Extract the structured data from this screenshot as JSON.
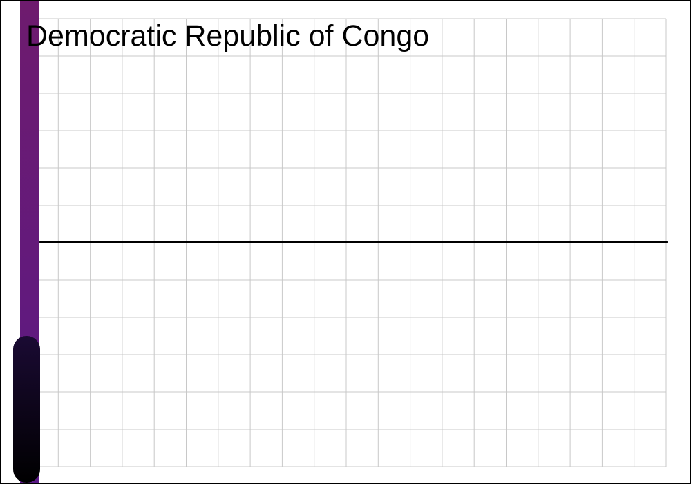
{
  "chart_data": {
    "type": "line",
    "title": "Democratic Republic of Congo",
    "xlabel": "",
    "ylabel": "",
    "grid": true,
    "series": [
      {
        "values": [
          0,
          0
        ]
      }
    ],
    "colors": {
      "line": "#000000",
      "grid": "#c8c8c8",
      "band_top": "#6e1b6e",
      "band_mid": "#5a1a86",
      "blob_top": "#1a0a33",
      "blob_bottom": "#000000"
    }
  }
}
